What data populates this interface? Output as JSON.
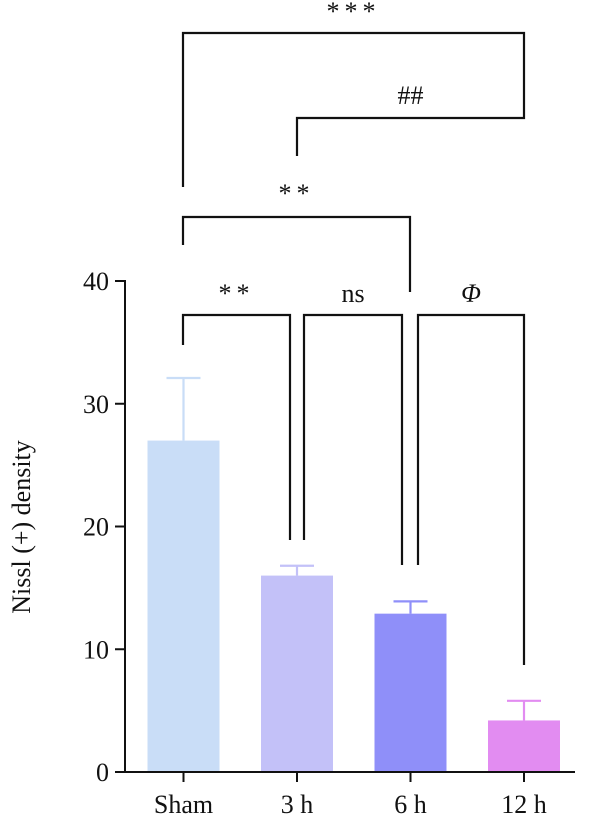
{
  "chart_data": {
    "type": "bar",
    "ylabel": "Nissl (+) density",
    "xlabel": "",
    "ylim": [
      0,
      40
    ],
    "yticks": [
      "0",
      "10",
      "20",
      "30",
      "40"
    ],
    "categories": [
      "Sham",
      "3 h",
      "6 h",
      "12 h"
    ],
    "values": [
      27,
      16,
      12.9,
      4.2
    ],
    "errors": [
      5.1,
      0.8,
      1.0,
      1.6
    ],
    "colors": [
      "#c9ddf7",
      "#c3c1f8",
      "#8f8ff9",
      "#e28cf1"
    ],
    "significance": [
      {
        "from": "Sham",
        "to": "3 h",
        "label": "**"
      },
      {
        "from": "3 h",
        "to": "6 h",
        "label": "ns"
      },
      {
        "from": "6 h",
        "to": "12 h",
        "label": "Φ"
      },
      {
        "from": "Sham",
        "to": "6 h",
        "label": "**"
      },
      {
        "from": "3 h",
        "to": "12 h",
        "label": "##"
      },
      {
        "from": "Sham",
        "to": "12 h",
        "label": "***"
      }
    ]
  }
}
